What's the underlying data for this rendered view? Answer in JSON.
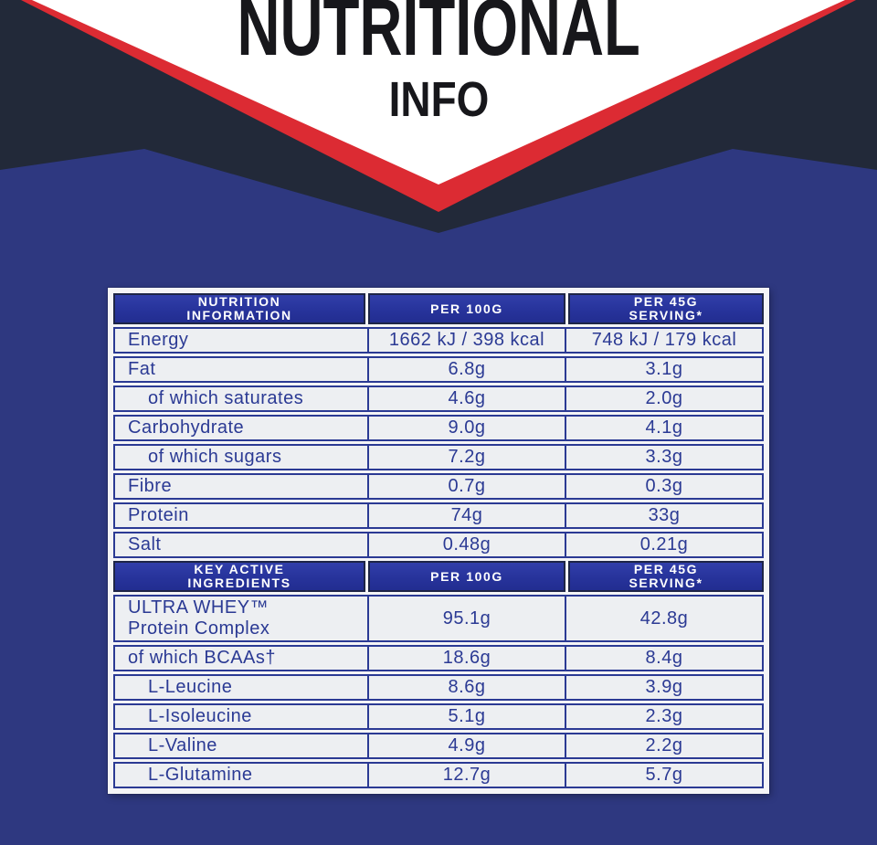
{
  "colors": {
    "navy": "#222939",
    "red": "#dc2b33",
    "white": "#ffffff",
    "page_blue": "#2e3880",
    "header_blue": "#27339b",
    "border_blue": "#2b3a94",
    "row_bg": "#edeff2",
    "title_black": "#17171b"
  },
  "banner": {
    "title_line1": "NUTRITIONAL",
    "title_line2": "INFO"
  },
  "table": {
    "sections": [
      {
        "header": {
          "col1": [
            "NUTRITION",
            "INFORMATION"
          ],
          "col2": [
            "PER 100g"
          ],
          "col3": [
            "PER 45g",
            "SERVING*"
          ]
        },
        "rows": [
          {
            "label": "Energy",
            "per100": "1662 kJ / 398 kcal",
            "per45": "748 kJ / 179 kcal",
            "indent": false
          },
          {
            "label": "Fat",
            "per100": "6.8g",
            "per45": "3.1g",
            "indent": false
          },
          {
            "label": "of which saturates",
            "per100": "4.6g",
            "per45": "2.0g",
            "indent": true
          },
          {
            "label": "Carbohydrate",
            "per100": "9.0g",
            "per45": "4.1g",
            "indent": false
          },
          {
            "label": "of which sugars",
            "per100": "7.2g",
            "per45": "3.3g",
            "indent": true
          },
          {
            "label": "Fibre",
            "per100": "0.7g",
            "per45": "0.3g",
            "indent": false
          },
          {
            "label": "Protein",
            "per100": "74g",
            "per45": "33g",
            "indent": false
          },
          {
            "label": "Salt",
            "per100": "0.48g",
            "per45": "0.21g",
            "indent": false
          }
        ]
      },
      {
        "header": {
          "col1": [
            "KEY ACTIVE",
            "INGREDIENTS"
          ],
          "col2": [
            "PER 100g"
          ],
          "col3": [
            "PER 45g",
            "SERVING*"
          ]
        },
        "rows": [
          {
            "label_lines": [
              "ULTRA WHEY™",
              "Protein Complex"
            ],
            "per100": "95.1g",
            "per45": "42.8g",
            "indent": false
          },
          {
            "label": "of which BCAAs†",
            "per100": "18.6g",
            "per45": "8.4g",
            "indent": false
          },
          {
            "label": "L-Leucine",
            "per100": "8.6g",
            "per45": "3.9g",
            "indent": true
          },
          {
            "label": "L-Isoleucine",
            "per100": "5.1g",
            "per45": "2.3g",
            "indent": true
          },
          {
            "label": "L-Valine",
            "per100": "4.9g",
            "per45": "2.2g",
            "indent": true
          },
          {
            "label": "L-Glutamine",
            "per100": "12.7g",
            "per45": "5.7g",
            "indent": true
          }
        ]
      }
    ]
  }
}
